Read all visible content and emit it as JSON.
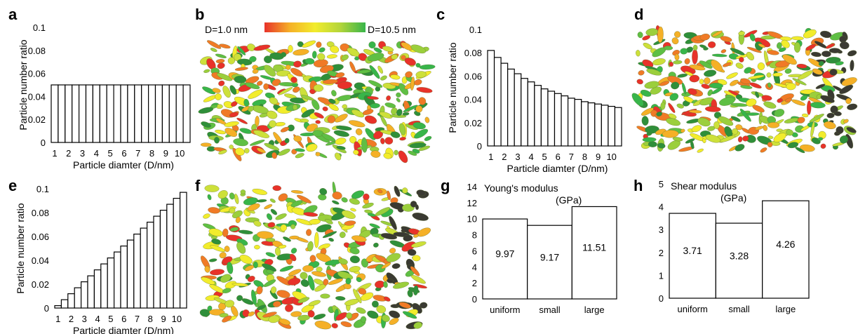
{
  "panels": {
    "a": "a",
    "b": "b",
    "c": "c",
    "d": "d",
    "e": "e",
    "f": "f",
    "g": "g",
    "h": "h"
  },
  "colorbar": {
    "min_label": "D=1.0 nm",
    "max_label": "D=10.5 nm",
    "colors": [
      "#e8322a",
      "#f5b027",
      "#f2ec2c",
      "#b3d53a",
      "#38b54a"
    ]
  },
  "chart_data": [
    {
      "panel": "a",
      "type": "bar",
      "title": "",
      "xlabel": "Particle diamter (D/nm)",
      "ylabel": "Particle number ratio",
      "ylim": [
        0,
        0.1
      ],
      "yticks": [
        "0",
        "0.02",
        "0.04",
        "0.06",
        "0.08",
        "0.1"
      ],
      "xtick_labels": [
        "1",
        "2",
        "3",
        "4",
        "5",
        "6",
        "7",
        "8",
        "9",
        "10"
      ],
      "values": [
        0.05,
        0.05,
        0.05,
        0.05,
        0.05,
        0.05,
        0.05,
        0.05,
        0.05,
        0.05,
        0.05,
        0.05,
        0.05,
        0.05,
        0.05,
        0.05,
        0.05,
        0.05,
        0.05,
        0.05
      ]
    },
    {
      "panel": "c",
      "type": "bar",
      "title": "",
      "xlabel": "Particle diamter (D/nm)",
      "ylabel": "Particle number ratio",
      "ylim": [
        0,
        0.1
      ],
      "yticks": [
        "0",
        "0.02",
        "0.04",
        "0.06",
        "0.08",
        "0.1"
      ],
      "xtick_labels": [
        "1",
        "2",
        "3",
        "4",
        "5",
        "6",
        "7",
        "8",
        "9",
        "10"
      ],
      "values": [
        0.082,
        0.076,
        0.071,
        0.066,
        0.062,
        0.058,
        0.055,
        0.052,
        0.049,
        0.047,
        0.045,
        0.043,
        0.041,
        0.04,
        0.038,
        0.037,
        0.036,
        0.035,
        0.034,
        0.033
      ]
    },
    {
      "panel": "e",
      "type": "bar",
      "title": "",
      "xlabel": "Particle diamter (D/nm)",
      "ylabel": "Particle number ratio",
      "ylim": [
        0,
        0.1
      ],
      "yticks": [
        "0",
        "0.02",
        "0.04",
        "0.06",
        "0.08",
        "0.1"
      ],
      "xtick_labels": [
        "1",
        "2",
        "3",
        "4",
        "5",
        "6",
        "7",
        "8",
        "9",
        "10"
      ],
      "values": [
        0.002,
        0.007,
        0.012,
        0.017,
        0.022,
        0.027,
        0.032,
        0.037,
        0.042,
        0.047,
        0.052,
        0.057,
        0.062,
        0.067,
        0.072,
        0.077,
        0.082,
        0.087,
        0.092,
        0.097
      ]
    },
    {
      "panel": "g",
      "type": "bar",
      "title": "Young's modulus",
      "unit": "(GPa)",
      "xlabel": "",
      "ylabel": "",
      "ylim": [
        0,
        14
      ],
      "yticks": [
        "0",
        "2",
        "4",
        "6",
        "8",
        "10",
        "12",
        "14"
      ],
      "categories": [
        "uniform",
        "small",
        "large"
      ],
      "values": [
        9.97,
        9.17,
        11.51
      ],
      "value_labels": [
        "9.97",
        "9.17",
        "11.51"
      ]
    },
    {
      "panel": "h",
      "type": "bar",
      "title": "Shear modulus",
      "unit": "(GPa)",
      "xlabel": "",
      "ylabel": "",
      "ylim": [
        0,
        5
      ],
      "yticks": [
        "0",
        "1",
        "2",
        "3",
        "4",
        "5"
      ],
      "categories": [
        "uniform",
        "small",
        "large"
      ],
      "values": [
        3.71,
        3.28,
        4.26
      ],
      "value_labels": [
        "3.71",
        "3.28",
        "4.26"
      ]
    }
  ]
}
